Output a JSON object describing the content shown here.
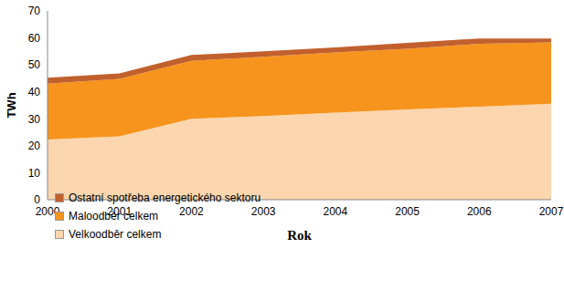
{
  "chart_data": {
    "type": "area",
    "stacked": true,
    "x_label": "Rok",
    "y_label": "TWh",
    "x": [
      2000,
      2001,
      2002,
      2003,
      2004,
      2005,
      2006,
      2007
    ],
    "xlim": [
      2000,
      2007
    ],
    "xticks": [
      2000,
      2001,
      2002,
      2003,
      2004,
      2005,
      2006,
      2007
    ],
    "ylim": [
      0,
      70
    ],
    "yticks": [
      0,
      10,
      20,
      30,
      40,
      50,
      60,
      70
    ],
    "grid": false,
    "legend": "lower left",
    "series": [
      {
        "name": "Velkoodběr celkem",
        "color": "#fbd6ae",
        "values": [
          22.3,
          23.5,
          30.0,
          31.0,
          32.3,
          33.5,
          34.5,
          35.6
        ]
      },
      {
        "name": "Maloodběr celkem",
        "color": "#f7941d",
        "values": [
          20.7,
          21.3,
          21.5,
          22.0,
          22.3,
          22.5,
          23.3,
          22.7
        ]
      },
      {
        "name": "Ostatní spotřeba energetického sektoru",
        "color": "#c2602d",
        "values": [
          2.2,
          2.0,
          2.2,
          2.0,
          1.9,
          2.2,
          2.0,
          1.5
        ]
      }
    ]
  }
}
